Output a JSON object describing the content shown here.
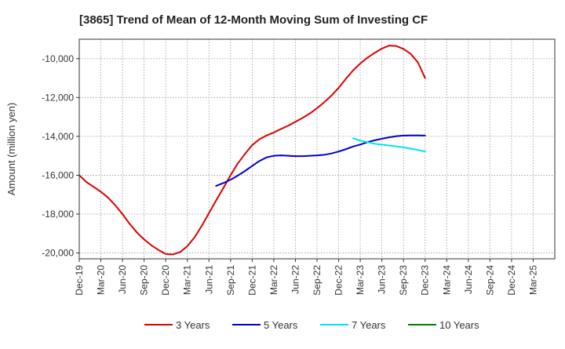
{
  "chart_data": {
    "type": "line",
    "title": "[3865]  Trend of Mean of 12-Month Moving Sum of Investing CF",
    "xlabel": "",
    "ylabel": "Amount (million yen)",
    "ylim": [
      -20300,
      -9000
    ],
    "grid": true,
    "legend_position": "bottom",
    "x_categories": [
      "Dec-19",
      "Mar-20",
      "Jun-20",
      "Sep-20",
      "Dec-20",
      "Mar-21",
      "Jun-21",
      "Sep-21",
      "Dec-21",
      "Mar-22",
      "Jun-22",
      "Sep-22",
      "Dec-22",
      "Mar-23",
      "Jun-23",
      "Sep-23",
      "Dec-23",
      "Mar-24",
      "Jun-24",
      "Sep-24",
      "Dec-24",
      "Mar-25"
    ],
    "y_ticks": [
      -20000,
      -18000,
      -16000,
      -14000,
      -12000,
      -10000
    ],
    "y_tick_labels": [
      "-20,000",
      "-18,000",
      "-16,000",
      "-14,000",
      "-12,000",
      "-10,000"
    ],
    "series": [
      {
        "name": "3 Years",
        "color": "#dd0000",
        "points": [
          [
            0,
            -16000
          ],
          [
            0.33,
            -16350
          ],
          [
            0.67,
            -16600
          ],
          [
            1,
            -16850
          ],
          [
            1.33,
            -17150
          ],
          [
            1.67,
            -17550
          ],
          [
            2,
            -18000
          ],
          [
            2.33,
            -18500
          ],
          [
            2.67,
            -18950
          ],
          [
            3,
            -19300
          ],
          [
            3.33,
            -19600
          ],
          [
            3.67,
            -19850
          ],
          [
            4,
            -20050
          ],
          [
            4.33,
            -20080
          ],
          [
            4.67,
            -19950
          ],
          [
            5,
            -19650
          ],
          [
            5.33,
            -19200
          ],
          [
            5.67,
            -18600
          ],
          [
            6,
            -17950
          ],
          [
            6.33,
            -17300
          ],
          [
            6.67,
            -16650
          ],
          [
            7,
            -16000
          ],
          [
            7.33,
            -15400
          ],
          [
            7.67,
            -14900
          ],
          [
            8,
            -14450
          ],
          [
            8.33,
            -14150
          ],
          [
            8.67,
            -13950
          ],
          [
            9,
            -13800
          ],
          [
            9.33,
            -13620
          ],
          [
            9.67,
            -13450
          ],
          [
            10,
            -13250
          ],
          [
            10.33,
            -13050
          ],
          [
            10.67,
            -12820
          ],
          [
            11,
            -12550
          ],
          [
            11.33,
            -12250
          ],
          [
            11.67,
            -11900
          ],
          [
            12,
            -11500
          ],
          [
            12.33,
            -11050
          ],
          [
            12.67,
            -10600
          ],
          [
            13,
            -10250
          ],
          [
            13.33,
            -9950
          ],
          [
            13.67,
            -9700
          ],
          [
            14,
            -9480
          ],
          [
            14.33,
            -9330
          ],
          [
            14.67,
            -9350
          ],
          [
            15,
            -9500
          ],
          [
            15.33,
            -9750
          ],
          [
            15.67,
            -10200
          ],
          [
            16,
            -11000
          ]
        ]
      },
      {
        "name": "5 Years",
        "color": "#0000cc",
        "points": [
          [
            6.33,
            -16550
          ],
          [
            6.67,
            -16400
          ],
          [
            7,
            -16230
          ],
          [
            7.33,
            -16020
          ],
          [
            7.67,
            -15780
          ],
          [
            8,
            -15520
          ],
          [
            8.33,
            -15270
          ],
          [
            8.67,
            -15080
          ],
          [
            9,
            -15000
          ],
          [
            9.33,
            -14980
          ],
          [
            9.67,
            -15000
          ],
          [
            10,
            -15020
          ],
          [
            10.33,
            -15020
          ],
          [
            10.67,
            -15000
          ],
          [
            11,
            -14980
          ],
          [
            11.33,
            -14950
          ],
          [
            11.67,
            -14880
          ],
          [
            12,
            -14780
          ],
          [
            12.33,
            -14660
          ],
          [
            12.67,
            -14520
          ],
          [
            13,
            -14420
          ],
          [
            13.33,
            -14300
          ],
          [
            13.67,
            -14200
          ],
          [
            14,
            -14120
          ],
          [
            14.33,
            -14050
          ],
          [
            14.67,
            -13990
          ],
          [
            15,
            -13960
          ],
          [
            15.33,
            -13950
          ],
          [
            15.67,
            -13950
          ],
          [
            16,
            -13960
          ]
        ]
      },
      {
        "name": "7 Years",
        "color": "#00e5ee",
        "points": [
          [
            12.67,
            -14100
          ],
          [
            13,
            -14220
          ],
          [
            13.33,
            -14300
          ],
          [
            13.67,
            -14380
          ],
          [
            14,
            -14430
          ],
          [
            14.33,
            -14470
          ],
          [
            14.67,
            -14520
          ],
          [
            15,
            -14570
          ],
          [
            15.33,
            -14630
          ],
          [
            15.67,
            -14700
          ],
          [
            16,
            -14780
          ]
        ]
      },
      {
        "name": "10 Years",
        "color": "#008000",
        "points": []
      }
    ]
  }
}
